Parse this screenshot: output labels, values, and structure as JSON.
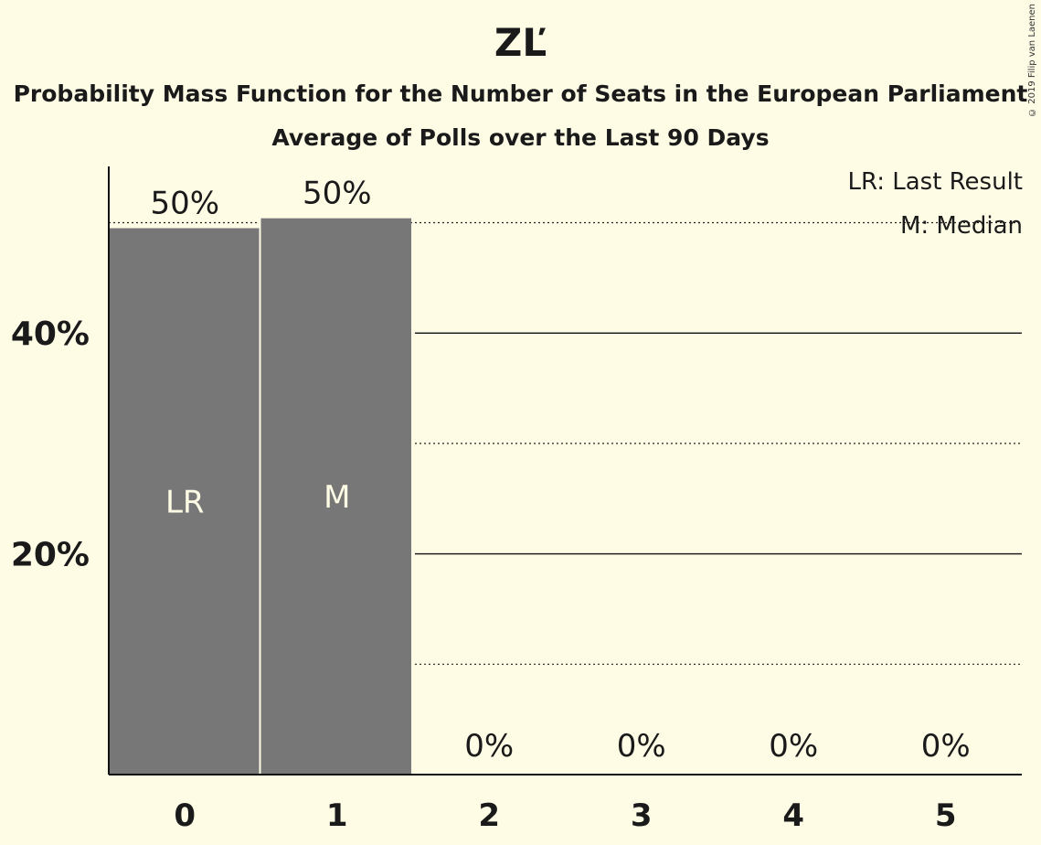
{
  "title": "ZĽ",
  "subtitle1": "Probability Mass Function for the Number of Seats in the European Parliament",
  "subtitle2": "Average of Polls over the Last 90 Days",
  "copyright": "© 2019 Filip van Laenen",
  "legend": {
    "last_result": "LR: Last Result",
    "median": "M: Median"
  },
  "colors": {
    "background": "#fffce6",
    "bar": "#777777"
  },
  "chart_data": {
    "type": "bar",
    "categories": [
      "0",
      "1",
      "2",
      "3",
      "4",
      "5"
    ],
    "values": [
      49.5,
      50.4,
      0,
      0,
      0,
      0
    ],
    "value_labels": [
      "50%",
      "50%",
      "0%",
      "0%",
      "0%",
      "0%"
    ],
    "bar_markers": [
      "LR",
      "M",
      "",
      "",
      "",
      ""
    ],
    "yticks": [
      {
        "value": 20,
        "label": "20%"
      },
      {
        "value": 40,
        "label": "40%"
      }
    ],
    "dotted_gridlines": [
      10,
      30,
      50
    ],
    "ylim": [
      0,
      55
    ],
    "grid": true,
    "legend_position": "top-right"
  }
}
